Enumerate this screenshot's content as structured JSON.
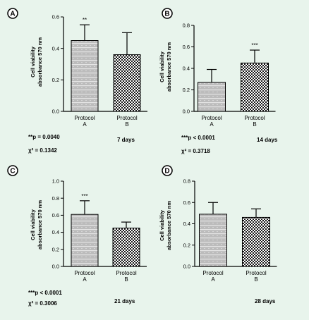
{
  "chart_data": [
    {
      "type": "bar",
      "panel": "A",
      "ylabel_line1": "Cell viability",
      "ylabel_line2": "absorbance 570 nm",
      "categories": [
        [
          "Protocol",
          "A"
        ],
        [
          "Protocol",
          "B"
        ]
      ],
      "values": [
        0.45,
        0.36
      ],
      "errors": [
        0.1,
        0.14
      ],
      "significance": [
        "**",
        ""
      ],
      "ylim": [
        0,
        0.6
      ],
      "yticks": [
        "0.0",
        "0.2",
        "0.4",
        "0.6"
      ],
      "stat_line1": "**p = 0.0040",
      "stat_line2": "χ² = 0.1342",
      "days": "7 days"
    },
    {
      "type": "bar",
      "panel": "B",
      "ylabel_line1": "Cell viability",
      "ylabel_line2": "absorbance 570 nm",
      "categories": [
        [
          "Protocol",
          "A"
        ],
        [
          "Protocol",
          "B"
        ]
      ],
      "values": [
        0.27,
        0.45
      ],
      "errors": [
        0.12,
        0.12
      ],
      "significance": [
        "",
        "***"
      ],
      "ylim": [
        0,
        0.8
      ],
      "yticks": [
        "0.0",
        "0.2",
        "0.4",
        "0.6",
        "0.8"
      ],
      "stat_line1": "***p < 0.0001",
      "stat_line2": "χ² = 0.3718",
      "days": "14 days"
    },
    {
      "type": "bar",
      "panel": "C",
      "ylabel_line1": "Cell viability",
      "ylabel_line2": "absorbance 570 nm",
      "categories": [
        [
          "Protocol",
          "A"
        ],
        [
          "Protocol",
          "B"
        ]
      ],
      "values": [
        0.61,
        0.45
      ],
      "errors": [
        0.16,
        0.07
      ],
      "significance": [
        "***",
        ""
      ],
      "ylim": [
        0,
        1.0
      ],
      "yticks": [
        "0.0",
        "0.2",
        "0.4",
        "0.6",
        "0.8",
        "1.0"
      ],
      "stat_line1": "***p < 0.0001",
      "stat_line2": "χ² = 0.3006",
      "days": "21 days"
    },
    {
      "type": "bar",
      "panel": "D",
      "ylabel_line1": "Cell viability",
      "ylabel_line2": "absorbance 570 nm",
      "categories": [
        [
          "Protocol",
          "A"
        ],
        [
          "Protocol",
          "B"
        ]
      ],
      "values": [
        0.49,
        0.46
      ],
      "errors": [
        0.11,
        0.08
      ],
      "significance": [
        "",
        ""
      ],
      "ylim": [
        0,
        0.8
      ],
      "yticks": [
        "0.0",
        "0.2",
        "0.4",
        "0.6",
        "0.8"
      ],
      "stat_line1": "",
      "stat_line2": "",
      "days": "28 days"
    }
  ],
  "colors": {
    "background": "#e8f4ec",
    "bar_a_fill": "#bcbcbc",
    "bar_a_stripe": "#f2f2f2",
    "bar_b_fill": "#ffffff",
    "bar_b_dot": "#1a1a1a"
  }
}
